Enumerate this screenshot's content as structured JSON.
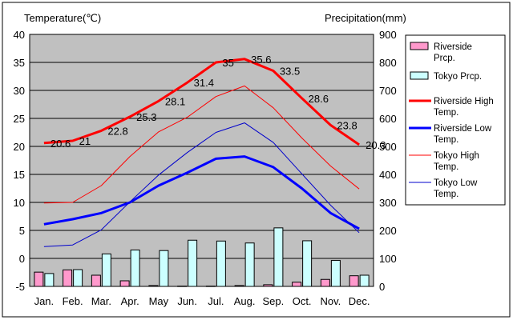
{
  "chart_data": {
    "type": "bar+line",
    "left_axis_title": "Temperature(℃)",
    "right_axis_title": "Precipitation(mm)",
    "temp_ylim": [
      -5,
      40
    ],
    "temp_ticks": [
      "-5",
      "0",
      "5",
      "10",
      "15",
      "20",
      "25",
      "30",
      "35",
      "40"
    ],
    "prcp_ylim": [
      0,
      900
    ],
    "prcp_ticks": [
      "0",
      "100",
      "200",
      "300",
      "400",
      "500",
      "600",
      "700",
      "800",
      "900"
    ],
    "grid": true,
    "categories": [
      "Jan.",
      "Feb.",
      "Mar.",
      "Apr.",
      "May",
      "Jun.",
      "Jul.",
      "Aug.",
      "Sep.",
      "Oct.",
      "Nov.",
      "Dec."
    ],
    "bar_series": [
      {
        "name": "Riverside Prcp.",
        "color": "#ff99cc",
        "values": [
          51,
          59,
          40,
          20,
          3,
          1,
          1,
          3,
          6,
          15,
          25,
          38
        ]
      },
      {
        "name": "Tokyo Prcp.",
        "color": "#ccffff",
        "values": [
          46,
          60,
          116,
          130,
          128,
          165,
          162,
          155,
          209,
          163,
          93,
          40
        ]
      }
    ],
    "line_series": [
      {
        "name": "Riverside High Temp.",
        "color": "#ff0000",
        "width": 3,
        "values": [
          20.6,
          21.0,
          22.8,
          25.3,
          28.1,
          31.4,
          35.0,
          35.6,
          33.5,
          28.6,
          23.8,
          20.3
        ]
      },
      {
        "name": "Riverside Low Temp.",
        "color": "#0000ff",
        "width": 3,
        "values": [
          6.1,
          7.0,
          8.1,
          10.0,
          13.0,
          15.3,
          17.8,
          18.2,
          16.3,
          12.5,
          8.1,
          5.3
        ]
      },
      {
        "name": "Tokyo High Temp.",
        "color": "#ff0000",
        "width": 1,
        "values": [
          9.9,
          10.0,
          13.0,
          18.2,
          22.6,
          25.2,
          28.9,
          30.8,
          26.9,
          21.5,
          16.5,
          12.4
        ]
      },
      {
        "name": "Tokyo Low Temp.",
        "color": "#0000cc",
        "width": 1,
        "values": [
          2.1,
          2.4,
          5.1,
          10.1,
          14.9,
          18.9,
          22.5,
          24.2,
          20.7,
          15.1,
          9.5,
          4.6
        ]
      }
    ],
    "data_labels": [
      "20.6",
      "21",
      "22.8",
      "25.3",
      "28.1",
      "31.4",
      "35",
      "35.6",
      "33.5",
      "28.6",
      "23.8",
      "20.3"
    ],
    "legend": [
      {
        "label": "Riverside Prcp.",
        "kind": "bar",
        "color": "#ff99cc"
      },
      {
        "label": "Tokyo Prcp.",
        "kind": "bar",
        "color": "#ccffff"
      },
      {
        "label": "Riverside High Temp.",
        "kind": "line",
        "color": "#ff0000",
        "width": 3
      },
      {
        "label": "Riverside Low Temp.",
        "kind": "line",
        "color": "#0000ff",
        "width": 3
      },
      {
        "label": "Tokyo High Temp.",
        "kind": "line",
        "color": "#ff0000",
        "width": 1
      },
      {
        "label": "Tokyo Low Temp.",
        "kind": "line",
        "color": "#0000cc",
        "width": 1
      }
    ],
    "legend_position": "right",
    "plot_background": "#c0c0c0"
  }
}
